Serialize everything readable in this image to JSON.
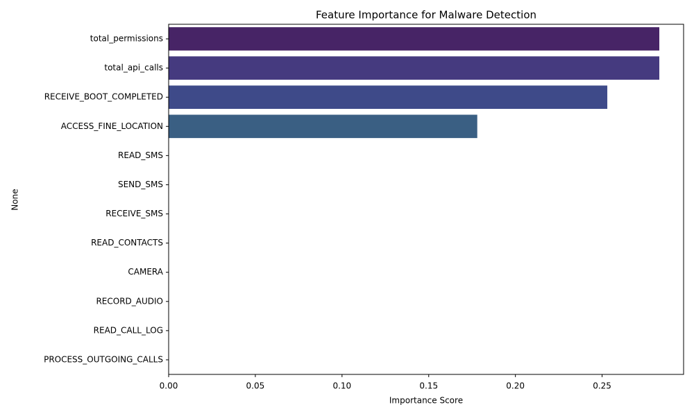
{
  "chart_data": {
    "type": "barh",
    "title": "Feature Importance for Malware Detection",
    "x_label": "Importance Score",
    "y_label": "None",
    "categories": [
      "total_permissions",
      "total_api_calls",
      "RECEIVE_BOOT_COMPLETED",
      "ACCESS_FINE_LOCATION",
      "READ_SMS",
      "SEND_SMS",
      "RECEIVE_SMS",
      "READ_CONTACTS",
      "CAMERA",
      "RECORD_AUDIO",
      "READ_CALL_LOG",
      "PROCESS_OUTGOING_CALLS"
    ],
    "values": [
      0.283,
      0.283,
      0.253,
      0.178,
      0,
      0,
      0,
      0,
      0,
      0,
      0,
      0
    ],
    "colors": [
      "#472466",
      "#453a7f",
      "#3e4a89",
      "#3a5f83",
      "#2f6f8d",
      "#29808d",
      "#22918b",
      "#1fa187",
      "#2fb27c",
      "#4fc16b",
      "#7acf55",
      "#a8db34"
    ],
    "xlim": [
      0,
      0.297
    ],
    "xticks": [
      {
        "value": 0,
        "label": "0.00"
      },
      {
        "value": 0.05,
        "label": "0.05"
      },
      {
        "value": 0.1,
        "label": "0.10"
      },
      {
        "value": 0.15,
        "label": "0.15"
      },
      {
        "value": 0.2,
        "label": "0.20"
      },
      {
        "value": 0.25,
        "label": "0.25"
      }
    ],
    "grid": false
  }
}
